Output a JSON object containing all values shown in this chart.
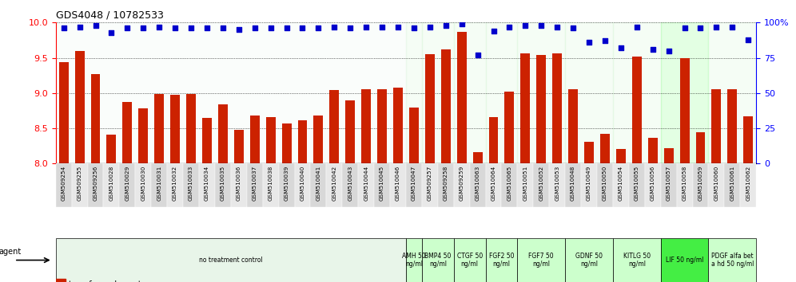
{
  "title": "GDS4048 / 10782533",
  "samples": [
    "GSM509254",
    "GSM509255",
    "GSM509256",
    "GSM510028",
    "GSM510029",
    "GSM510030",
    "GSM510031",
    "GSM510032",
    "GSM510033",
    "GSM510034",
    "GSM510035",
    "GSM510036",
    "GSM510037",
    "GSM510038",
    "GSM510039",
    "GSM510040",
    "GSM510041",
    "GSM510042",
    "GSM510043",
    "GSM510044",
    "GSM510045",
    "GSM510046",
    "GSM510047",
    "GSM509257",
    "GSM509258",
    "GSM509259",
    "GSM510063",
    "GSM510064",
    "GSM510065",
    "GSM510051",
    "GSM510052",
    "GSM510053",
    "GSM510048",
    "GSM510049",
    "GSM510050",
    "GSM510054",
    "GSM510055",
    "GSM510056",
    "GSM510057",
    "GSM510058",
    "GSM510059",
    "GSM510060",
    "GSM510061",
    "GSM510062"
  ],
  "bar_values": [
    9.44,
    9.6,
    9.27,
    8.41,
    8.87,
    8.78,
    8.99,
    8.98,
    8.99,
    8.65,
    8.84,
    8.48,
    8.68,
    8.66,
    8.57,
    8.61,
    8.68,
    9.04,
    8.9,
    9.05,
    9.06,
    9.08,
    8.79,
    9.55,
    9.62,
    9.87,
    8.16,
    8.66,
    9.02,
    9.56,
    9.54,
    9.56,
    9.05,
    8.31,
    8.42,
    8.21,
    9.52,
    8.37,
    8.22,
    9.49,
    8.44,
    9.05,
    9.06,
    8.67
  ],
  "dot_values": [
    96,
    97,
    98,
    93,
    96,
    96,
    97,
    96,
    96,
    96,
    96,
    95,
    96,
    96,
    96,
    96,
    96,
    97,
    96,
    97,
    97,
    97,
    96,
    97,
    98,
    99,
    77,
    94,
    97,
    98,
    98,
    97,
    96,
    86,
    87,
    82,
    97,
    81,
    80,
    96,
    96,
    97,
    97,
    88
  ],
  "ylim_left": [
    8.0,
    10.0
  ],
  "ylim_right": [
    0,
    100
  ],
  "bar_color": "#cc2200",
  "dot_color": "#0000cc",
  "yticks_left": [
    8.0,
    8.5,
    9.0,
    9.5,
    10.0
  ],
  "yticks_right": [
    0,
    25,
    50,
    75,
    100
  ],
  "groups": [
    {
      "label": "no treatment control",
      "start": 0,
      "end": 21,
      "color": "#e8f5e9"
    },
    {
      "label": "AMH 50\nng/ml",
      "start": 22,
      "end": 22,
      "color": "#c8f5c8"
    },
    {
      "label": "BMP4 50\nng/ml",
      "start": 23,
      "end": 24,
      "color": "#c8f5c8"
    },
    {
      "label": "CTGF 50\nng/ml",
      "start": 25,
      "end": 26,
      "color": "#c8f5c8"
    },
    {
      "label": "FGF2 50\nng/ml",
      "start": 27,
      "end": 28,
      "color": "#c8f5c8"
    },
    {
      "label": "FGF7 50\nng/ml",
      "start": 29,
      "end": 31,
      "color": "#c8f5c8"
    },
    {
      "label": "GDNF 50\nng/ml",
      "start": 32,
      "end": 34,
      "color": "#c8f5c8"
    },
    {
      "label": "KITLG 50\nng/ml",
      "start": 35,
      "end": 37,
      "color": "#c8f5c8"
    },
    {
      "label": "LIF 50 ng/ml",
      "start": 38,
      "end": 40,
      "color": "#66ff66"
    },
    {
      "label": "PDGF alfa bet\na hd 50 ng/ml",
      "start": 41,
      "end": 43,
      "color": "#c8f5c8"
    }
  ]
}
